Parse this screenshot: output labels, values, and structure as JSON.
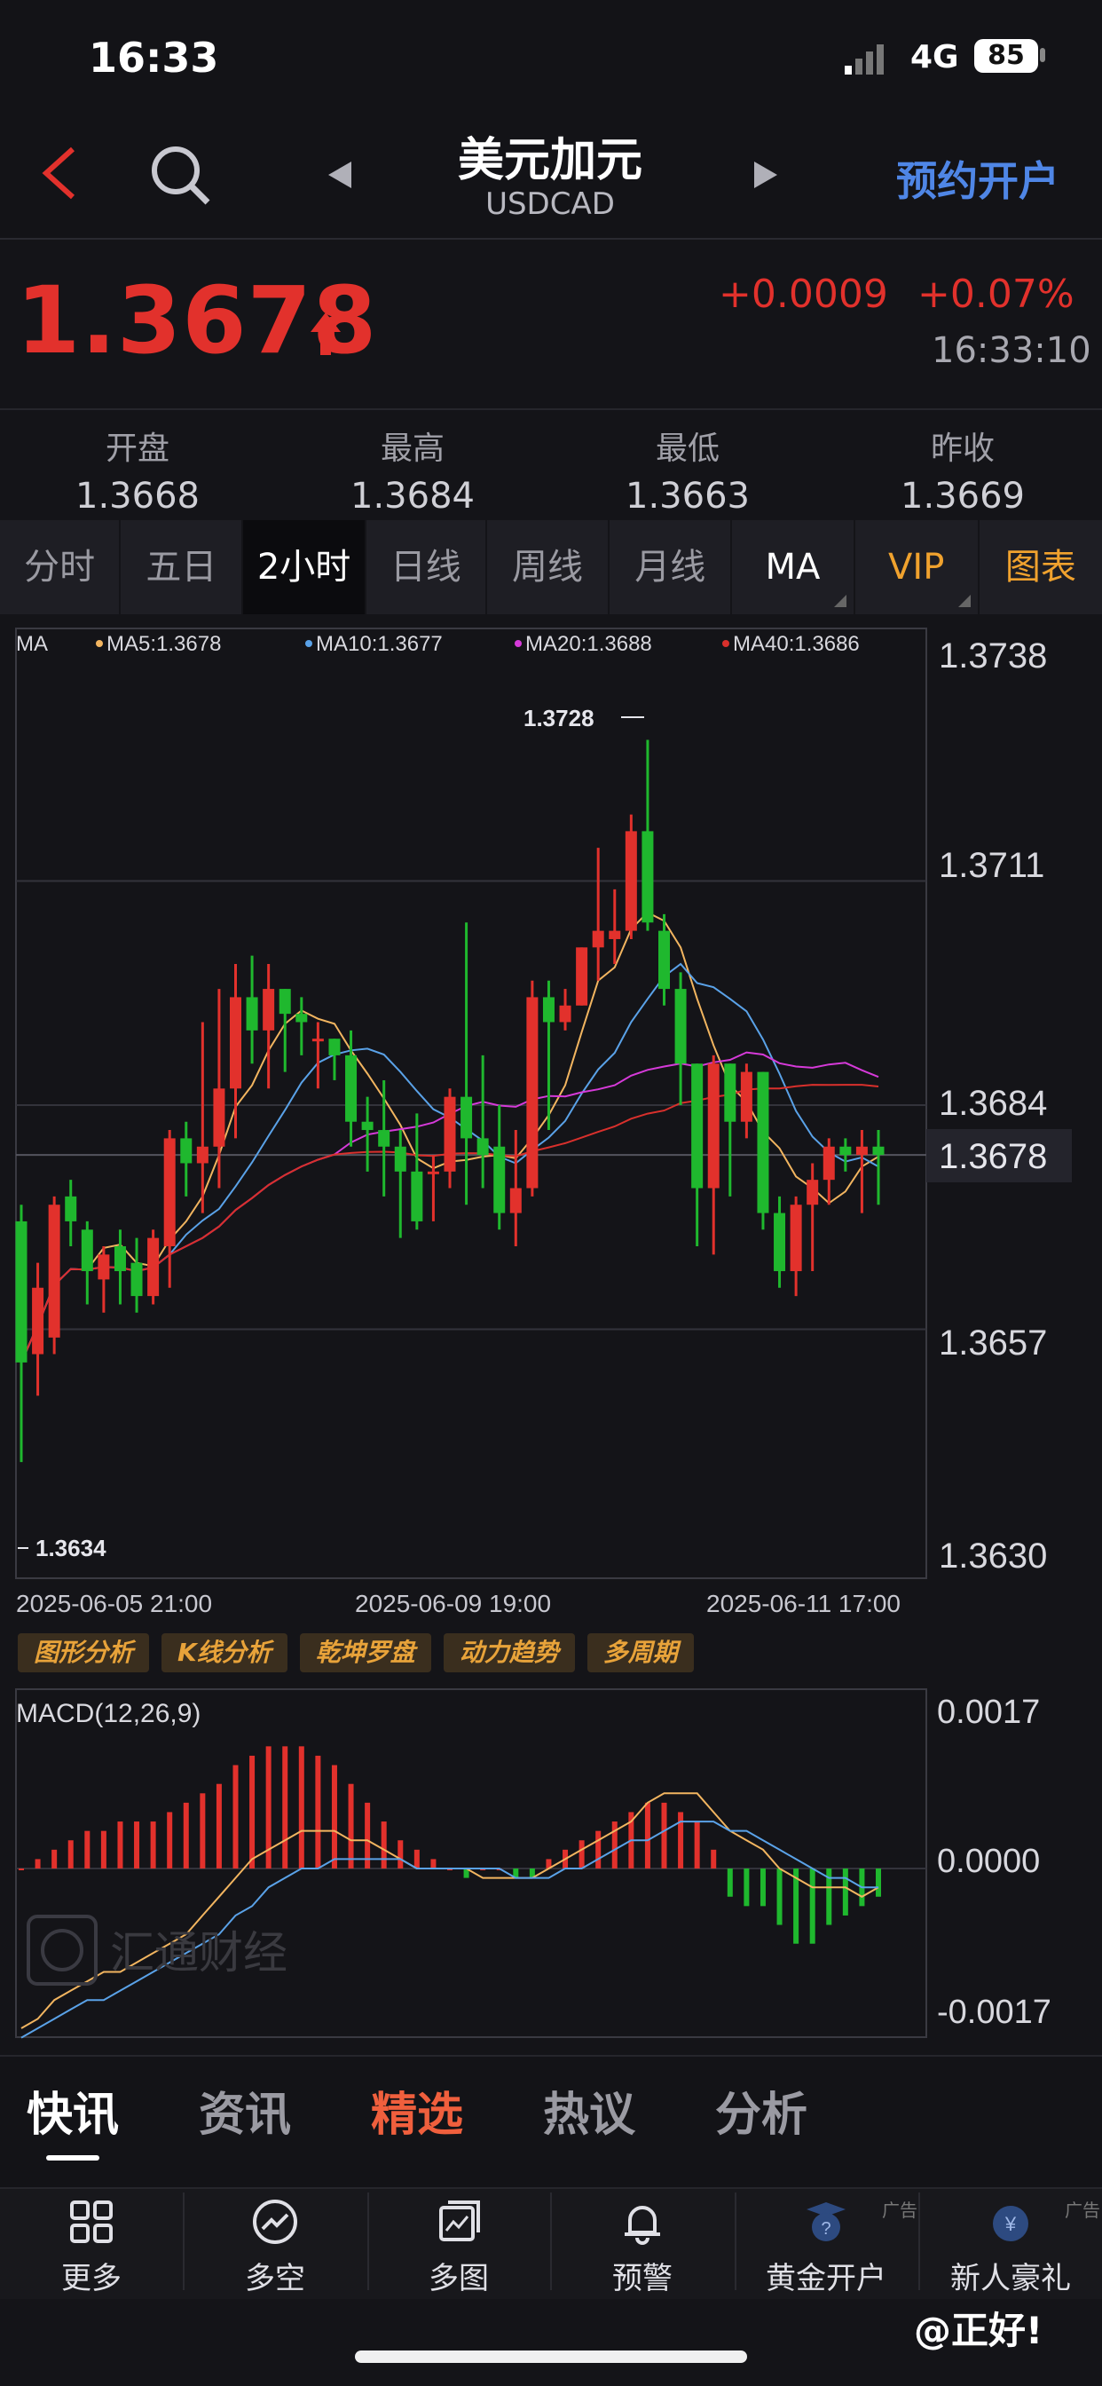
{
  "status": {
    "time": "16:33",
    "network": "4G",
    "battery": "85"
  },
  "header": {
    "title": "美元加元",
    "subtitle": "USDCAD",
    "open_account": "预约开户"
  },
  "quote": {
    "price": "1.3678",
    "change": "+0.0009",
    "change_pct": "+0.07%",
    "time": "16:33:10"
  },
  "stats": [
    {
      "label": "开盘",
      "value": "1.3668"
    },
    {
      "label": "最高",
      "value": "1.3684"
    },
    {
      "label": "最低",
      "value": "1.3663"
    },
    {
      "label": "昨收",
      "value": "1.3669"
    }
  ],
  "tabs": [
    "分时",
    "五日",
    "2小时",
    "日线",
    "周线",
    "月线",
    "MA",
    "VIP",
    "图表"
  ],
  "tools": [
    "图形分析",
    "K线分析",
    "乾坤罗盘",
    "动力趋势",
    "多周期"
  ],
  "watermark": "汇通财经",
  "news_tabs": [
    "快讯",
    "资讯",
    "精选",
    "热议",
    "分析"
  ],
  "bottom_nav": [
    {
      "label": "更多",
      "icon": "grid-icon"
    },
    {
      "label": "多空",
      "icon": "trend-circle-icon"
    },
    {
      "label": "多图",
      "icon": "multi-chart-icon"
    },
    {
      "label": "预警",
      "icon": "bell-icon"
    },
    {
      "label": "黄金开户",
      "icon": "gold-badge-icon"
    },
    {
      "label": "新人豪礼",
      "icon": "gift-badge-icon"
    }
  ],
  "ad_label": "广告",
  "brand": "@正好!",
  "colors": {
    "up": "#e2312c",
    "down": "#1fb82e",
    "ma5": "#f2b560",
    "ma10": "#5aa2e8",
    "ma20": "#d63ad9",
    "ma40": "#d9302c",
    "accent": "#4f86e6",
    "gold": "#f0a22e"
  },
  "chart_data": {
    "type": "candlestick",
    "legend": {
      "label": "MA",
      "ma5": "MA5:1.3678",
      "ma10": "MA10:1.3677",
      "ma20": "MA20:1.3688",
      "ma40": "MA40:1.3686"
    },
    "y_ticks": [
      "1.3738",
      "1.3711",
      "1.3684",
      "1.3657",
      "1.3630"
    ],
    "ylim": [
      1.363,
      1.3738
    ],
    "x_labels": [
      "2025-06-05 21:00",
      "2025-06-09 19:00",
      "2025-06-11 17:00"
    ],
    "current_price": "1.3678",
    "max_label": "1.3728",
    "min_label": "1.3634",
    "candles": [
      [
        1.367,
        1.3653,
        1.3672,
        1.3641
      ],
      [
        1.3654,
        1.3662,
        1.3665,
        1.3649
      ],
      [
        1.3656,
        1.3672,
        1.3673,
        1.3654
      ],
      [
        1.3673,
        1.367,
        1.3675,
        1.3667
      ],
      [
        1.3669,
        1.3664,
        1.367,
        1.366
      ],
      [
        1.3663,
        1.3666,
        1.3667,
        1.3659
      ],
      [
        1.3667,
        1.3664,
        1.3669,
        1.366
      ],
      [
        1.3665,
        1.3661,
        1.3668,
        1.3659
      ],
      [
        1.3661,
        1.3668,
        1.3669,
        1.366
      ],
      [
        1.3667,
        1.368,
        1.3681,
        1.3662
      ],
      [
        1.368,
        1.3677,
        1.3682,
        1.3673
      ],
      [
        1.3677,
        1.3679,
        1.3694,
        1.3671
      ],
      [
        1.3679,
        1.3686,
        1.3698,
        1.3674
      ],
      [
        1.3686,
        1.3697,
        1.3701,
        1.368
      ],
      [
        1.3697,
        1.3693,
        1.3702,
        1.3689
      ],
      [
        1.3693,
        1.3698,
        1.3701,
        1.3686
      ],
      [
        1.3698,
        1.3695,
        1.3698,
        1.3688
      ],
      [
        1.3695,
        1.3694,
        1.3697,
        1.369
      ],
      [
        1.3692,
        1.3692,
        1.3694,
        1.3686
      ],
      [
        1.3692,
        1.369,
        1.3692,
        1.3687
      ],
      [
        1.369,
        1.3682,
        1.3693,
        1.3679
      ],
      [
        1.3682,
        1.3681,
        1.3685,
        1.3676
      ],
      [
        1.3681,
        1.3679,
        1.3687,
        1.3673
      ],
      [
        1.3679,
        1.3676,
        1.3681,
        1.3668
      ],
      [
        1.3676,
        1.367,
        1.3683,
        1.3669
      ],
      [
        1.3676,
        1.3676,
        1.3678,
        1.367
      ],
      [
        1.3676,
        1.3685,
        1.3686,
        1.3674
      ],
      [
        1.3685,
        1.368,
        1.3706,
        1.3672
      ],
      [
        1.368,
        1.3678,
        1.369,
        1.3674
      ],
      [
        1.3679,
        1.3671,
        1.3684,
        1.3669
      ],
      [
        1.3671,
        1.3674,
        1.3681,
        1.3667
      ],
      [
        1.3674,
        1.3697,
        1.3699,
        1.3673
      ],
      [
        1.3697,
        1.3694,
        1.3699,
        1.3681
      ],
      [
        1.3694,
        1.3696,
        1.3698,
        1.3693
      ],
      [
        1.3696,
        1.3703,
        1.3703,
        1.3696
      ],
      [
        1.3703,
        1.3705,
        1.3715,
        1.3699
      ],
      [
        1.3704,
        1.3705,
        1.371,
        1.3701
      ],
      [
        1.3705,
        1.3717,
        1.3719,
        1.3704
      ],
      [
        1.3717,
        1.3706,
        1.3728,
        1.3705
      ],
      [
        1.3705,
        1.3698,
        1.3707,
        1.3696
      ],
      [
        1.3698,
        1.3689,
        1.37,
        1.3684
      ],
      [
        1.3689,
        1.3674,
        1.3689,
        1.3667
      ],
      [
        1.3674,
        1.3689,
        1.369,
        1.3666
      ],
      [
        1.3689,
        1.3682,
        1.3689,
        1.3673
      ],
      [
        1.3682,
        1.3688,
        1.3689,
        1.368
      ],
      [
        1.3688,
        1.3671,
        1.3688,
        1.3669
      ],
      [
        1.3671,
        1.3664,
        1.3673,
        1.3662
      ],
      [
        1.3664,
        1.3672,
        1.3673,
        1.3661
      ],
      [
        1.3672,
        1.3675,
        1.3677,
        1.3664
      ],
      [
        1.3675,
        1.3679,
        1.368,
        1.3672
      ],
      [
        1.3679,
        1.3678,
        1.368,
        1.3676
      ],
      [
        1.3678,
        1.3679,
        1.3681,
        1.3671
      ],
      [
        1.3679,
        1.3678,
        1.3681,
        1.3672
      ]
    ],
    "macd": {
      "title": "MACD(12,26,9)",
      "y_ticks": [
        "0.0017",
        "0.0000",
        "-0.0017"
      ],
      "ylim": [
        -0.0017,
        0.0017
      ],
      "hist": [
        0.0,
        0.0001,
        0.0002,
        0.0003,
        0.0004,
        0.0004,
        0.0005,
        0.0005,
        0.0005,
        0.0006,
        0.0007,
        0.0008,
        0.0009,
        0.0011,
        0.0012,
        0.0013,
        0.0013,
        0.0013,
        0.0012,
        0.0011,
        0.0009,
        0.0007,
        0.0005,
        0.0003,
        0.0002,
        0.0001,
        0.0,
        -0.0001,
        0.0,
        0.0,
        -0.0001,
        -0.0001,
        0.0001,
        0.0002,
        0.0003,
        0.0004,
        0.0005,
        0.0006,
        0.0007,
        0.0007,
        0.0006,
        0.0005,
        0.0002,
        -0.0003,
        -0.0004,
        -0.0004,
        -0.0006,
        -0.0008,
        -0.0008,
        -0.0006,
        -0.0005,
        -0.0004,
        -0.0003
      ],
      "dif": [
        -0.0017,
        -0.0016,
        -0.0014,
        -0.0013,
        -0.0012,
        -0.0011,
        -0.0011,
        -0.001,
        -0.0009,
        -0.0008,
        -0.0007,
        -0.0005,
        -0.0003,
        -0.0001,
        0.0001,
        0.0002,
        0.0003,
        0.0004,
        0.0004,
        0.0004,
        0.0003,
        0.0003,
        0.0002,
        0.0001,
        0.0,
        0.0,
        0.0,
        0.0,
        -0.0001,
        -0.0001,
        -0.0001,
        -0.0001,
        0.0,
        0.0001,
        0.0002,
        0.0003,
        0.0004,
        0.0005,
        0.0007,
        0.0008,
        0.0008,
        0.0008,
        0.0006,
        0.0004,
        0.0003,
        0.0002,
        0.0,
        -0.0001,
        -0.0002,
        -0.0002,
        -0.0002,
        -0.0003,
        -0.0002
      ],
      "dea": [
        -0.0018,
        -0.0017,
        -0.0016,
        -0.0015,
        -0.0014,
        -0.0014,
        -0.0013,
        -0.0012,
        -0.0011,
        -0.001,
        -0.0009,
        -0.0008,
        -0.0007,
        -0.0005,
        -0.0004,
        -0.0002,
        -0.0001,
        0.0,
        0.0,
        0.0001,
        0.0001,
        0.0001,
        0.0001,
        0.0001,
        0.0,
        0.0,
        0.0,
        0.0,
        0.0,
        0.0,
        -0.0001,
        -0.0001,
        -0.0001,
        0.0,
        0.0,
        0.0001,
        0.0002,
        0.0003,
        0.0003,
        0.0004,
        0.0005,
        0.0005,
        0.0005,
        0.0004,
        0.0004,
        0.0003,
        0.0002,
        0.0001,
        0.0,
        -0.0001,
        -0.0001,
        -0.0002,
        -0.0002
      ]
    }
  }
}
